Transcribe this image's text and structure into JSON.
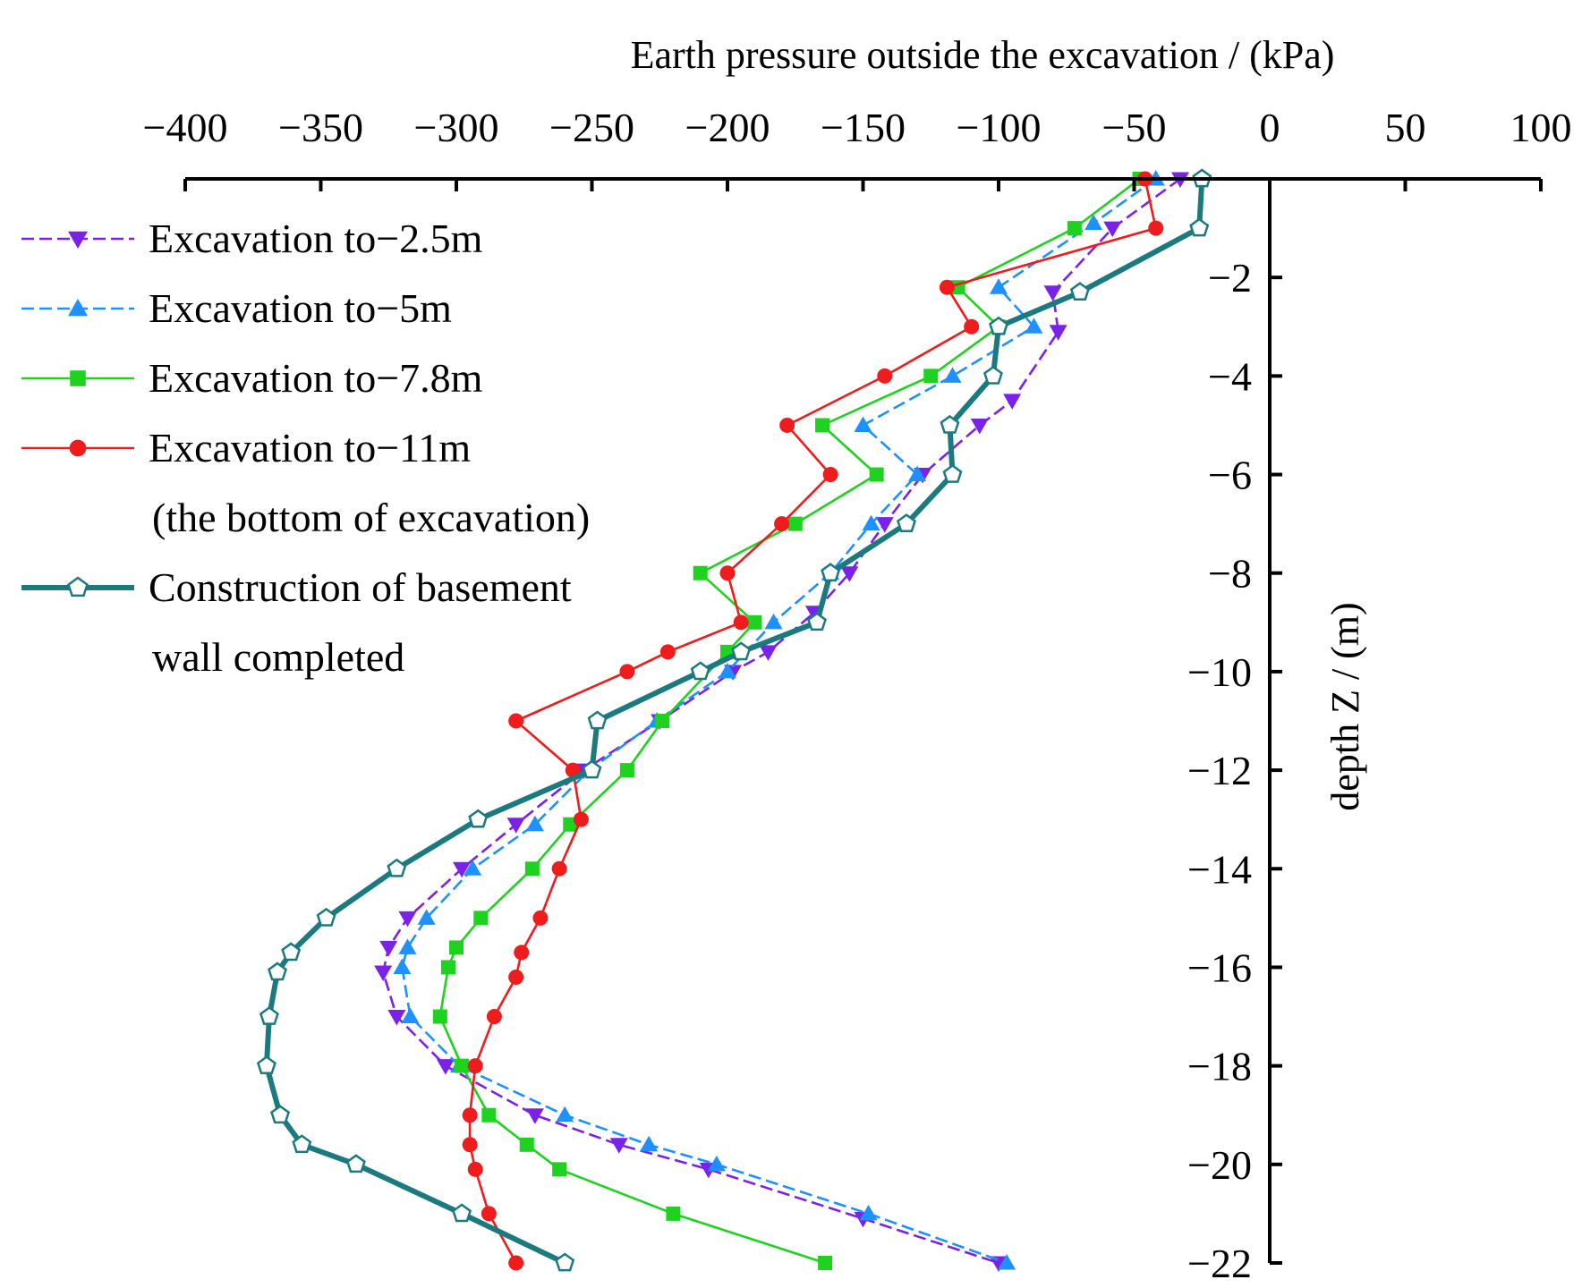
{
  "chart_data": {
    "type": "line",
    "orientation": "depth-profile",
    "title": "",
    "xlabel": "Earth pressure outside the excavation / (kPa)",
    "ylabel": "depth Z / (m)",
    "xlim": [
      -400,
      100
    ],
    "ylim": [
      -22,
      0
    ],
    "x_ticks": [
      -400,
      -350,
      -300,
      -250,
      -200,
      -150,
      -100,
      -50,
      0,
      50,
      100
    ],
    "y_ticks": [
      -2,
      -4,
      -6,
      -8,
      -10,
      -12,
      -14,
      -16,
      -18,
      -20,
      -22
    ],
    "x_tick_labels": [
      "−400",
      "−350",
      "−300",
      "−250",
      "−200",
      "−150",
      "−100",
      "−50",
      "0",
      "50",
      "100"
    ],
    "y_tick_labels": [
      "−2",
      "−4",
      "−6",
      "−8",
      "−10",
      "−12",
      "−14",
      "−16",
      "−18",
      "−20",
      "−22"
    ],
    "x_axis_position": "top",
    "y_axis_position": "at x = 0, labels on left",
    "grid": false,
    "legend_placement": "top-left",
    "series": [
      {
        "name": "Excavation to−2.5m",
        "name_extra": [],
        "color": "#7B22E8",
        "marker": "triangle-down",
        "line": "dashed",
        "points": [
          [
            -33,
            0
          ],
          [
            -58,
            -1
          ],
          [
            -80,
            -2.3
          ],
          [
            -78,
            -3.1
          ],
          [
            -95,
            -4.5
          ],
          [
            -107,
            -5
          ],
          [
            -128,
            -6
          ],
          [
            -142,
            -7
          ],
          [
            -155,
            -8
          ],
          [
            -168,
            -8.8
          ],
          [
            -185,
            -9.6
          ],
          [
            -198,
            -10
          ],
          [
            -225,
            -11
          ],
          [
            -253,
            -12
          ],
          [
            -278,
            -13.1
          ],
          [
            -298,
            -14
          ],
          [
            -318,
            -15
          ],
          [
            -325,
            -15.6
          ],
          [
            -327,
            -16.1
          ],
          [
            -322,
            -17
          ],
          [
            -304,
            -18
          ],
          [
            -271,
            -19
          ],
          [
            -240,
            -19.6
          ],
          [
            -207,
            -20.1
          ],
          [
            -150,
            -21.1
          ],
          [
            -100,
            -22
          ]
        ]
      },
      {
        "name": "Excavation to−5m",
        "name_extra": [],
        "color": "#1E90FF",
        "marker": "triangle-up",
        "line": "dashed",
        "points": [
          [
            -42,
            0
          ],
          [
            -65,
            -0.9
          ],
          [
            -100,
            -2.2
          ],
          [
            -87,
            -3
          ],
          [
            -117,
            -4
          ],
          [
            -150,
            -5
          ],
          [
            -130,
            -6
          ],
          [
            -147,
            -7
          ],
          [
            -162,
            -8
          ],
          [
            -183,
            -9
          ],
          [
            -200,
            -10
          ],
          [
            -226,
            -11
          ],
          [
            -251,
            -12
          ],
          [
            -271,
            -13.1
          ],
          [
            -294,
            -14
          ],
          [
            -311,
            -15
          ],
          [
            -318,
            -15.6
          ],
          [
            -320,
            -16
          ],
          [
            -317,
            -17
          ],
          [
            -299,
            -18
          ],
          [
            -260,
            -19
          ],
          [
            -229,
            -19.6
          ],
          [
            -204,
            -20
          ],
          [
            -148,
            -21
          ],
          [
            -97,
            -22
          ]
        ]
      },
      {
        "name": "Excavation to−7.8m",
        "name_extra": [],
        "color": "#1FD21F",
        "marker": "square",
        "line": "solid",
        "points": [
          [
            -48,
            0
          ],
          [
            -72,
            -1
          ],
          [
            -115,
            -2.2
          ],
          [
            -100,
            -3
          ],
          [
            -125,
            -4
          ],
          [
            -165,
            -5
          ],
          [
            -145,
            -6
          ],
          [
            -175,
            -7
          ],
          [
            -210,
            -8
          ],
          [
            -190,
            -9
          ],
          [
            -200,
            -9.6
          ],
          [
            -224,
            -11
          ],
          [
            -237,
            -12
          ],
          [
            -258,
            -13.1
          ],
          [
            -272,
            -14
          ],
          [
            -291,
            -15
          ],
          [
            -300,
            -15.6
          ],
          [
            -303,
            -16
          ],
          [
            -306,
            -17
          ],
          [
            -298,
            -18
          ],
          [
            -288,
            -19
          ],
          [
            -274,
            -19.6
          ],
          [
            -262,
            -20.1
          ],
          [
            -220,
            -21
          ],
          [
            -164,
            -22
          ]
        ]
      },
      {
        "name": "Excavation to−11m",
        "name_extra": [
          "(the bottom of excavation)"
        ],
        "color": "#EE1C1C",
        "marker": "circle",
        "line": "solid",
        "points": [
          [
            -46,
            0
          ],
          [
            -42,
            -1
          ],
          [
            -119,
            -2.2
          ],
          [
            -110,
            -3
          ],
          [
            -142,
            -4
          ],
          [
            -178,
            -5
          ],
          [
            -162,
            -6
          ],
          [
            -180,
            -7
          ],
          [
            -200,
            -8
          ],
          [
            -195,
            -9
          ],
          [
            -222,
            -9.6
          ],
          [
            -237,
            -10
          ],
          [
            -278,
            -11
          ],
          [
            -257,
            -12
          ],
          [
            -254,
            -13
          ],
          [
            -262,
            -14
          ],
          [
            -269,
            -15
          ],
          [
            -276,
            -15.7
          ],
          [
            -278,
            -16.2
          ],
          [
            -286,
            -17
          ],
          [
            -293,
            -18
          ],
          [
            -295,
            -19
          ],
          [
            -295,
            -19.6
          ],
          [
            -293,
            -20.1
          ],
          [
            -288,
            -21
          ],
          [
            -278,
            -22
          ]
        ]
      },
      {
        "name": "Construction of basement",
        "name_extra": [
          "wall completed"
        ],
        "color": "#1B7A7E",
        "marker": "pentagon-open",
        "line": "solid-thick",
        "points": [
          [
            -25,
            0
          ],
          [
            -26,
            -1
          ],
          [
            -70,
            -2.3
          ],
          [
            -100,
            -3
          ],
          [
            -102,
            -4
          ],
          [
            -118,
            -5
          ],
          [
            -117,
            -6
          ],
          [
            -134,
            -7
          ],
          [
            -162,
            -8
          ],
          [
            -167,
            -9
          ],
          [
            -195,
            -9.6
          ],
          [
            -210,
            -10
          ],
          [
            -248,
            -11
          ],
          [
            -250,
            -12
          ],
          [
            -292,
            -13
          ],
          [
            -322,
            -14
          ],
          [
            -348,
            -15
          ],
          [
            -361,
            -15.7
          ],
          [
            -366,
            -16.1
          ],
          [
            -369,
            -17
          ],
          [
            -370,
            -18
          ],
          [
            -365,
            -19
          ],
          [
            -357,
            -19.6
          ],
          [
            -337,
            -20
          ],
          [
            -298,
            -21
          ],
          [
            -260,
            -22
          ]
        ]
      }
    ]
  }
}
